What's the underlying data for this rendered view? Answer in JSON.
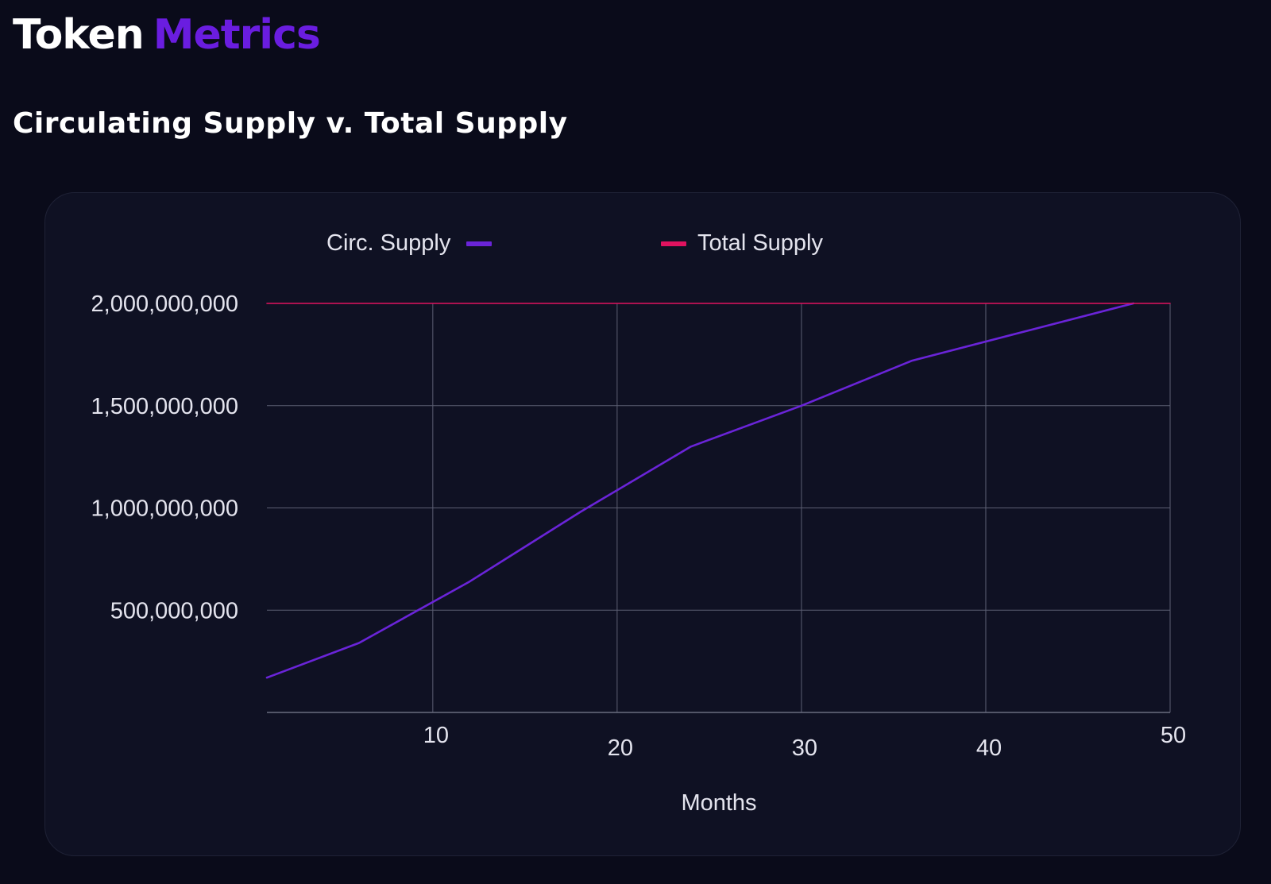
{
  "brand": {
    "word1": "Token",
    "word2": "Metrics",
    "color_primary": "#ffffff",
    "color_accent": "#6a1de0"
  },
  "page": {
    "title": "Circulating Supply v. Total Supply"
  },
  "legend": {
    "circ_label": "Circ. Supply",
    "total_label": "Total Supply"
  },
  "chart_data": {
    "type": "line",
    "title": "",
    "xlabel": "Months",
    "ylabel": "",
    "xlim": [
      1,
      50
    ],
    "ylim": [
      0,
      2000000000
    ],
    "x_ticks": [
      10,
      20,
      30,
      40,
      50
    ],
    "y_ticks": [
      500000000,
      1000000000,
      1500000000,
      2000000000
    ],
    "y_tick_labels": [
      "500,000,000",
      "1,000,000,000",
      "1,500,000,000",
      "2,000,000,000"
    ],
    "grid": true,
    "legend_position": "top",
    "series": [
      {
        "name": "Circ. Supply",
        "color": "#6a24d8",
        "x": [
          1,
          6,
          12,
          18,
          24,
          30,
          36,
          42,
          48
        ],
        "y": [
          170000000,
          340000000,
          640000000,
          980000000,
          1300000000,
          1500000000,
          1720000000,
          1860000000,
          2000000000
        ]
      },
      {
        "name": "Total Supply",
        "color": "#e0125f",
        "x": [
          1,
          50
        ],
        "y": [
          2000000000,
          2000000000
        ]
      }
    ]
  }
}
